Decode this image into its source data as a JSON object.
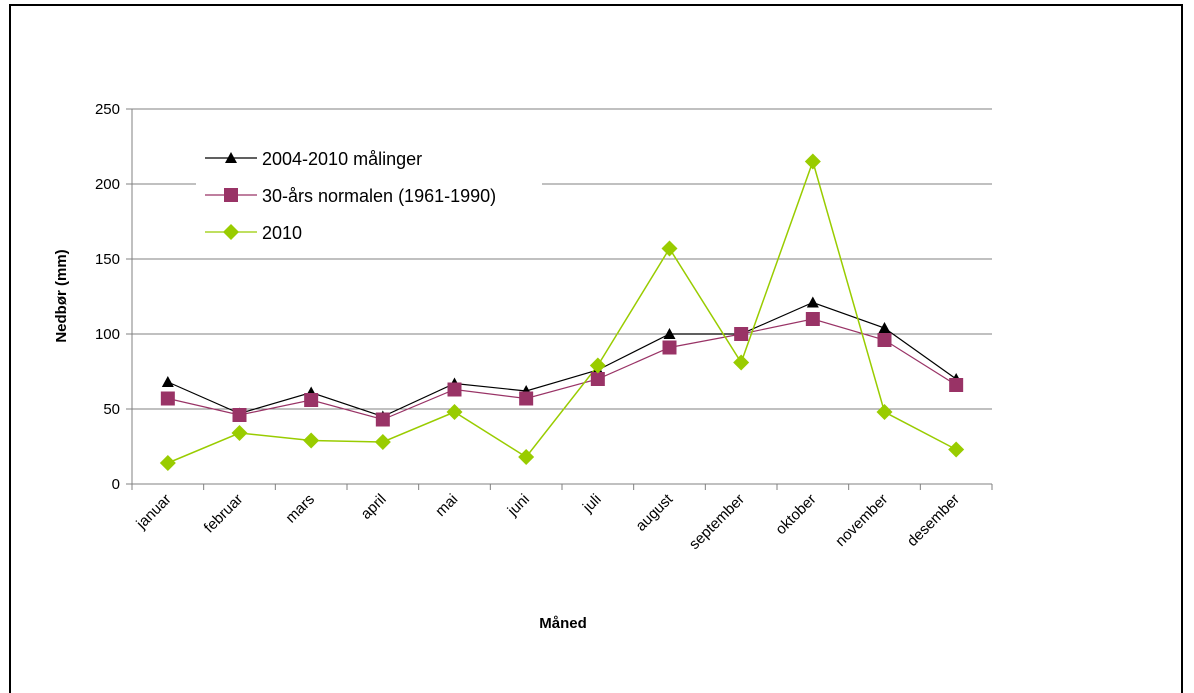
{
  "chart_data": {
    "type": "line",
    "title": "",
    "xlabel": "Måned",
    "ylabel": "Nedbør (mm)",
    "ylim": [
      0,
      250
    ],
    "yticks": [
      0,
      50,
      100,
      150,
      200,
      250
    ],
    "grid": "horizontal",
    "legend": "top-left",
    "categories": [
      "januar",
      "februar",
      "mars",
      "april",
      "mai",
      "juni",
      "juli",
      "august",
      "september",
      "oktober",
      "november",
      "desember"
    ],
    "series": [
      {
        "name": "2004-2010 målinger",
        "marker": "triangle",
        "color": "#000000",
        "values": [
          68,
          47,
          61,
          45,
          67,
          62,
          76,
          100,
          100,
          121,
          104,
          70
        ]
      },
      {
        "name": "30-års normalen (1961-1990)",
        "marker": "square",
        "color": "#993366",
        "values": [
          57,
          46,
          56,
          43,
          63,
          57,
          70,
          91,
          100,
          110,
          96,
          66
        ]
      },
      {
        "name": "2010",
        "marker": "diamond",
        "color": "#99CC00",
        "values": [
          14,
          34,
          29,
          28,
          48,
          18,
          79,
          157,
          81,
          215,
          48,
          23
        ]
      }
    ]
  }
}
